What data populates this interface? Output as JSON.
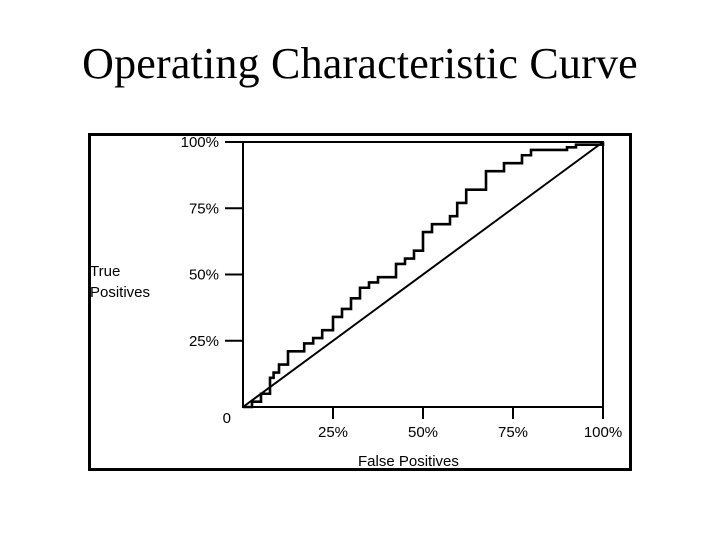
{
  "slide": {
    "title": "Operating Characteristic Curve"
  },
  "chart_data": {
    "type": "line",
    "xlabel": "False Positives",
    "ylabel_lines": [
      "True",
      "Positives"
    ],
    "xlim": [
      0,
      100
    ],
    "ylim": [
      0,
      100
    ],
    "x_ticks": [
      {
        "value": 0,
        "label": "0"
      },
      {
        "value": 25,
        "label": "25%"
      },
      {
        "value": 50,
        "label": "50%"
      },
      {
        "value": 75,
        "label": "75%"
      },
      {
        "value": 100,
        "label": "100%"
      }
    ],
    "y_ticks": [
      {
        "value": 25,
        "label": "25%"
      },
      {
        "value": 50,
        "label": "50%"
      },
      {
        "value": 75,
        "label": "75%"
      },
      {
        "value": 100,
        "label": "100%"
      }
    ],
    "grid": false,
    "series": [
      {
        "style": "step",
        "color": "#000000",
        "points": [
          [
            0,
            0
          ],
          [
            2.5,
            0
          ],
          [
            2.5,
            2
          ],
          [
            5,
            2
          ],
          [
            5,
            5
          ],
          [
            7.5,
            5
          ],
          [
            7.5,
            11
          ],
          [
            8.5,
            11
          ],
          [
            8.5,
            13
          ],
          [
            10,
            13
          ],
          [
            10,
            16
          ],
          [
            12.5,
            16
          ],
          [
            12.5,
            21
          ],
          [
            17,
            21
          ],
          [
            17,
            24
          ],
          [
            19.5,
            24
          ],
          [
            19.5,
            26
          ],
          [
            22,
            26
          ],
          [
            22,
            29
          ],
          [
            25,
            29
          ],
          [
            25,
            34
          ],
          [
            27.5,
            34
          ],
          [
            27.5,
            37
          ],
          [
            30,
            37
          ],
          [
            30,
            41
          ],
          [
            32.5,
            41
          ],
          [
            32.5,
            45
          ],
          [
            35,
            45
          ],
          [
            35,
            47
          ],
          [
            37.5,
            47
          ],
          [
            37.5,
            49
          ],
          [
            42.5,
            49
          ],
          [
            42.5,
            54
          ],
          [
            45,
            54
          ],
          [
            45,
            56
          ],
          [
            47.5,
            56
          ],
          [
            47.5,
            59
          ],
          [
            50,
            59
          ],
          [
            50,
            66
          ],
          [
            52.5,
            66
          ],
          [
            52.5,
            69
          ],
          [
            57.5,
            69
          ],
          [
            57.5,
            72
          ],
          [
            59.5,
            72
          ],
          [
            59.5,
            77
          ],
          [
            62,
            77
          ],
          [
            62,
            82
          ],
          [
            67.5,
            82
          ],
          [
            67.5,
            89
          ],
          [
            72.5,
            89
          ],
          [
            72.5,
            92
          ],
          [
            77.5,
            92
          ],
          [
            77.5,
            95
          ],
          [
            80,
            95
          ],
          [
            80,
            97
          ],
          [
            90,
            97
          ],
          [
            90,
            98
          ],
          [
            92.5,
            98
          ],
          [
            92.5,
            99
          ],
          [
            100,
            99
          ],
          [
            100,
            100
          ]
        ]
      },
      {
        "style": "straight",
        "color": "#000000",
        "points": [
          [
            0,
            0
          ],
          [
            100,
            100
          ]
        ]
      }
    ]
  }
}
